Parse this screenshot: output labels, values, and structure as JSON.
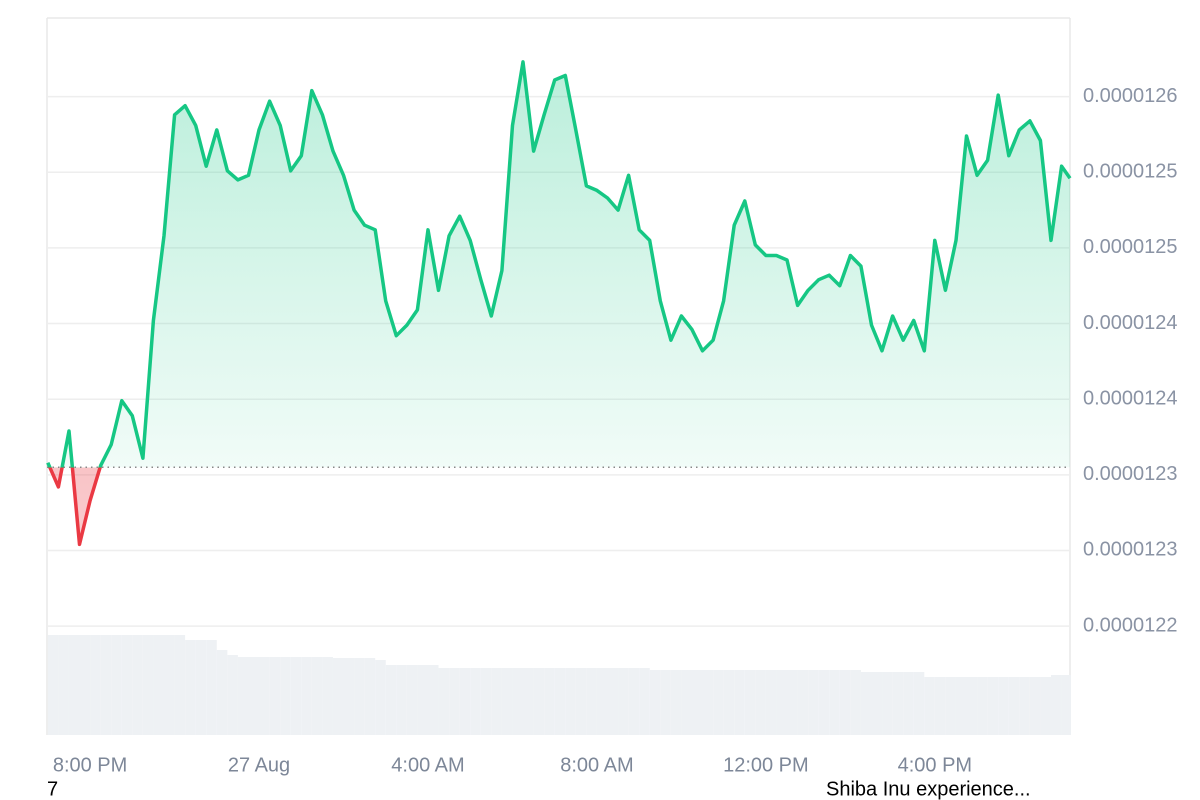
{
  "chart_data": {
    "type": "line",
    "x": [
      19,
      19.25,
      19.5,
      19.75,
      20,
      20.25,
      20.5,
      20.75,
      21,
      21.25,
      21.5,
      21.75,
      22,
      22.25,
      22.5,
      22.75,
      23,
      23.25,
      23.5,
      23.75,
      24,
      24.25,
      24.5,
      24.75,
      25,
      25.25,
      25.5,
      25.75,
      26,
      26.25,
      26.5,
      26.75,
      27,
      27.25,
      27.5,
      27.75,
      28,
      28.25,
      28.5,
      28.75,
      29,
      29.25,
      29.5,
      29.75,
      30,
      30.25,
      30.5,
      30.75,
      31,
      31.25,
      31.5,
      31.75,
      32,
      32.25,
      32.5,
      32.75,
      33,
      33.25,
      33.5,
      33.75,
      34,
      34.25,
      34.5,
      34.75,
      35,
      35.25,
      35.5,
      35.75,
      36,
      36.25,
      36.5,
      36.75,
      37,
      37.25,
      37.5,
      37.75,
      38,
      38.25,
      38.5,
      38.75,
      39,
      39.25,
      39.5,
      39.75,
      40,
      40.25,
      40.5,
      40.75,
      41,
      41.25,
      41.5,
      41.75,
      42,
      42.25,
      42.5,
      42.75,
      43,
      43.2
    ],
    "values": [
      1.2308e-05,
      1.2292e-05,
      1.2329e-05,
      1.2254e-05,
      1.2283e-05,
      1.2306e-05,
      1.232e-05,
      1.2349e-05,
      1.2339e-05,
      1.2311e-05,
      1.2402e-05,
      1.2458e-05,
      1.2538e-05,
      1.2544e-05,
      1.2531e-05,
      1.2504e-05,
      1.2528e-05,
      1.2501e-05,
      1.2495e-05,
      1.2498e-05,
      1.2528e-05,
      1.2547e-05,
      1.2531e-05,
      1.2501e-05,
      1.2511e-05,
      1.2554e-05,
      1.2538e-05,
      1.2514e-05,
      1.2498e-05,
      1.2475e-05,
      1.2465e-05,
      1.2462e-05,
      1.2415e-05,
      1.2392e-05,
      1.2399e-05,
      1.2409e-05,
      1.2462e-05,
      1.2422e-05,
      1.2458e-05,
      1.2471e-05,
      1.2455e-05,
      1.2429e-05,
      1.2405e-05,
      1.2435e-05,
      1.2531e-05,
      1.2573e-05,
      1.2514e-05,
      1.2538e-05,
      1.2561e-05,
      1.2564e-05,
      1.2528e-05,
      1.2491e-05,
      1.2488e-05,
      1.2483e-05,
      1.2475e-05,
      1.2498e-05,
      1.2462e-05,
      1.2455e-05,
      1.2415e-05,
      1.2389e-05,
      1.2405e-05,
      1.2396e-05,
      1.2382e-05,
      1.2389e-05,
      1.2415e-05,
      1.2465e-05,
      1.2481e-05,
      1.2452e-05,
      1.2445e-05,
      1.2445e-05,
      1.2442e-05,
      1.2412e-05,
      1.2422e-05,
      1.2429e-05,
      1.2432e-05,
      1.2425e-05,
      1.2445e-05,
      1.2438e-05,
      1.2399e-05,
      1.2382e-05,
      1.2405e-05,
      1.2389e-05,
      1.2402e-05,
      1.2382e-05,
      1.2455e-05,
      1.2422e-05,
      1.2455e-05,
      1.2524e-05,
      1.2498e-05,
      1.2508e-05,
      1.2551e-05,
      1.2511e-05,
      1.2528e-05,
      1.2534e-05,
      1.2521e-05,
      1.2455e-05,
      1.2504e-05,
      1.2496e-05
    ],
    "volume": [
      100,
      100,
      100,
      100,
      100,
      100,
      100,
      100,
      100,
      100,
      100,
      100,
      100,
      95,
      95,
      95,
      85,
      80,
      78,
      78,
      78,
      78,
      78,
      78,
      78,
      78,
      78,
      77,
      77,
      77,
      77,
      75,
      70,
      70,
      70,
      70,
      70,
      67,
      67,
      67,
      67,
      67,
      67,
      67,
      67,
      67,
      67,
      67,
      67,
      67,
      67,
      67,
      67,
      67,
      67,
      67,
      67,
      65,
      65,
      65,
      65,
      65,
      65,
      65,
      65,
      65,
      65,
      65,
      65,
      65,
      65,
      65,
      65,
      65,
      65,
      65,
      65,
      63,
      63,
      63,
      63,
      63,
      63,
      58,
      58,
      58,
      58,
      58,
      58,
      58,
      58,
      58,
      58,
      58,
      58,
      60,
      60,
      60
    ],
    "baseline": 1.2305e-05,
    "color": "#16c784",
    "down_color": "#ea3943",
    "volume_color": "#eef1f4",
    "xlim": [
      18.98,
      43.2
    ],
    "xticks": [
      {
        "value": 20,
        "label": "8:00 PM"
      },
      {
        "value": 24,
        "label": "27 Aug"
      },
      {
        "value": 28,
        "label": "4:00 AM"
      },
      {
        "value": 32,
        "label": "8:00 AM"
      },
      {
        "value": 36,
        "label": "12:00 PM"
      },
      {
        "value": 40,
        "label": "4:00 PM"
      }
    ],
    "ylim": [
      1.2128e-05,
      1.2602e-05
    ],
    "yticks": [
      {
        "value": 1.22e-05,
        "label": "0.0000122"
      },
      {
        "value": 1.225e-05,
        "label": "0.0000123"
      },
      {
        "value": 1.23e-05,
        "label": "0.0000123"
      },
      {
        "value": 1.235e-05,
        "label": "0.0000124"
      },
      {
        "value": 1.24e-05,
        "label": "0.0000124"
      },
      {
        "value": 1.245e-05,
        "label": "0.0000125"
      },
      {
        "value": 1.25e-05,
        "label": "0.0000125"
      },
      {
        "value": 1.255e-05,
        "label": "0.0000126"
      }
    ],
    "grid": true
  },
  "footer": {
    "left": "7",
    "right": "Shiba Inu experience..."
  }
}
